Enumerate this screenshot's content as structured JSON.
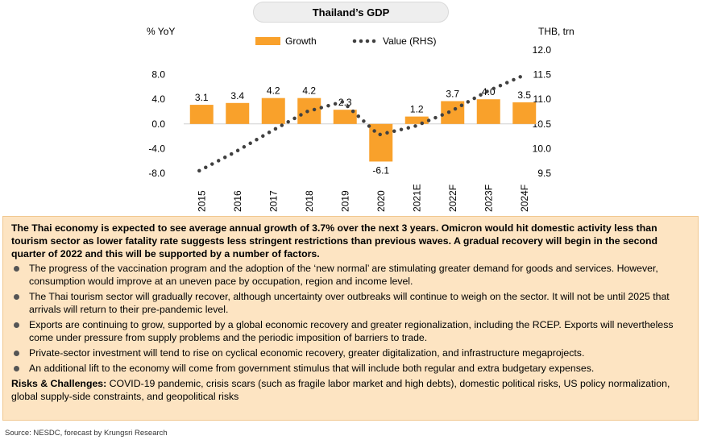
{
  "title": "Thailand’s GDP",
  "chart_data": {
    "type": "bar",
    "title": "Thailand’s GDP",
    "categories": [
      "2015",
      "2016",
      "2017",
      "2018",
      "2019",
      "2020",
      "2021E",
      "2022F",
      "2023F",
      "2024F"
    ],
    "series": [
      {
        "name": "Growth",
        "type": "bar",
        "axis": "left",
        "color": "#f9a12b",
        "values": [
          3.1,
          3.4,
          4.2,
          4.2,
          2.3,
          -6.1,
          1.2,
          3.7,
          4.0,
          3.5
        ],
        "labels": [
          "3.1",
          "3.4",
          "4.2",
          "4.2",
          "2.3",
          "-6.1",
          "1.2",
          "3.7",
          "4.0",
          "3.5"
        ]
      },
      {
        "name": "Value (RHS)",
        "type": "line",
        "style": "dotted",
        "axis": "right",
        "color": "#404040",
        "values": [
          9.55,
          9.93,
          10.35,
          10.75,
          10.95,
          10.28,
          10.45,
          10.75,
          11.15,
          11.47
        ]
      }
    ],
    "ylabel": "% YoY",
    "y2label": "THB, trn",
    "ylim": [
      -8.0,
      12.0
    ],
    "y2lim": [
      9.5,
      12.0
    ],
    "yticks": [
      "8.0",
      "4.0",
      "0.0",
      "-4.0",
      "-8.0"
    ],
    "yticks_values": [
      8,
      4,
      0,
      -4,
      -8
    ],
    "y2ticks": [
      "12.0",
      "11.5",
      "11.0",
      "10.5",
      "10.0",
      "9.5"
    ],
    "y2ticks_values": [
      12.0,
      11.5,
      11.0,
      10.5,
      10.0,
      9.5
    ],
    "legend": "top",
    "grid": false
  },
  "panel": {
    "intro": "The Thai economy is expected to see average annual growth of 3.7% over the next 3 years. Omicron would hit domestic activity less than tourism sector as lower fatality rate suggests  less stringent restrictions than previous waves. A gradual recovery will begin in the second quarter of 2022 and this will be supported by a number of factors.",
    "bullets": [
      "The progress of the vaccination program and the adoption of the ‘new normal’ are stimulating greater demand for goods and services. However, consumption would improve at an uneven pace by occupation, region and income level.",
      "The Thai tourism sector will gradually recover, although uncertainty over outbreaks will continue to weigh on the sector. It will not be until 2025 that arrivals will return to their pre-pandemic level.",
      "Exports are continuing to grow, supported by a global economic recovery and greater regionalization, including the RCEP. Exports will nevertheless come under pressure from supply problems and the periodic imposition of barriers to trade.",
      "Private-sector investment will tend to rise on cyclical economic recovery, greater digitalization, and infrastructure megaprojects.",
      "An additional lift to the economy will come from government stimulus that will include both regular and extra budgetary expenses."
    ],
    "risks_label": "Risks & Challenges:",
    "risks_text": " COVID-19 pandemic, crisis scars (such as fragile labor market and high debts), domestic political risks, US policy normalization, global supply-side constraints, and geopolitical risks"
  },
  "source": "Source: NESDC, forecast by Krungsri Research"
}
